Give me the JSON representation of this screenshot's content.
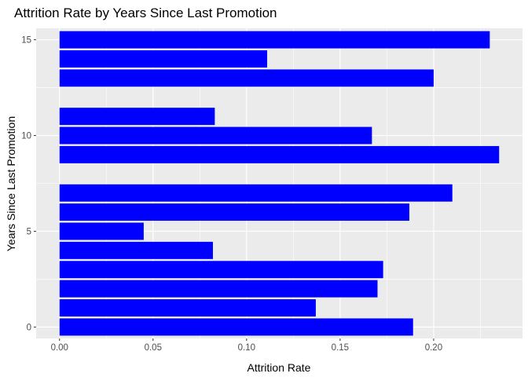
{
  "chart_data": {
    "type": "bar",
    "orientation": "horizontal",
    "title": "Attrition Rate by Years Since Last Promotion",
    "xlabel": "Attrition Rate",
    "ylabel": "Years Since Last Promotion",
    "bar_color": "#0000FF",
    "panel_background": "#EBEBEB",
    "grid_color": "#FFFFFF",
    "grid": true,
    "xlim": [
      -0.0125,
      0.2475
    ],
    "ylim": [
      -0.6,
      15.6
    ],
    "x_ticks": [
      0.0,
      0.05,
      0.1,
      0.15,
      0.2
    ],
    "x_tick_labels": [
      "0.00",
      "0.05",
      "0.10",
      "0.15",
      "0.20"
    ],
    "y_ticks": [
      0,
      5,
      10,
      15
    ],
    "y_tick_labels": [
      "0",
      "5",
      "10",
      "15"
    ],
    "categories": [
      0,
      1,
      2,
      3,
      4,
      5,
      6,
      7,
      9,
      10,
      11,
      13,
      14,
      15
    ],
    "values": [
      0.189,
      0.137,
      0.17,
      0.173,
      0.082,
      0.045,
      0.187,
      0.21,
      0.235,
      0.167,
      0.083,
      0.2,
      0.111,
      0.23
    ]
  }
}
